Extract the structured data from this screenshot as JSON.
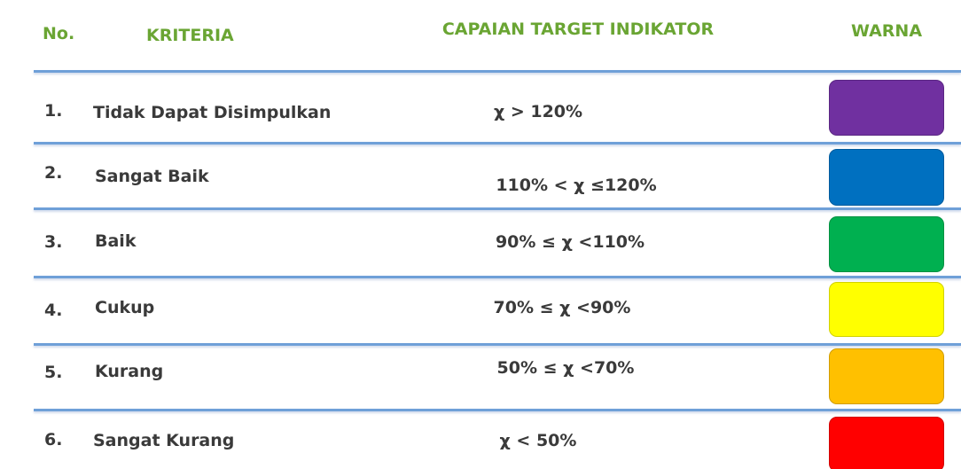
{
  "header": {
    "no": "No.",
    "criteria": "KRITERIA",
    "range": "CAPAIAN TARGET INDIKATOR",
    "color": "WARNA"
  },
  "rows": [
    {
      "no": "1.",
      "criteria": "Tidak Dapat Disimpulkan",
      "range": "χ > 120%",
      "color": "#7030a0"
    },
    {
      "no": "2.",
      "criteria": "Sangat Baik",
      "range": "110% < χ ≤120%",
      "color": "#0070c0"
    },
    {
      "no": "3.",
      "criteria": "Baik",
      "range": "90% ≤ χ <110%",
      "color": "#00b050"
    },
    {
      "no": "4.",
      "criteria": "Cukup",
      "range": "70% ≤ χ <90%",
      "color": "#ffff00"
    },
    {
      "no": "5.",
      "criteria": "Kurang",
      "range": "50% ≤ χ <70%",
      "color": "#ffc000"
    },
    {
      "no": "6.",
      "criteria": "Sangat Kurang",
      "range": "χ < 50%",
      "color": "#ff0000"
    }
  ]
}
